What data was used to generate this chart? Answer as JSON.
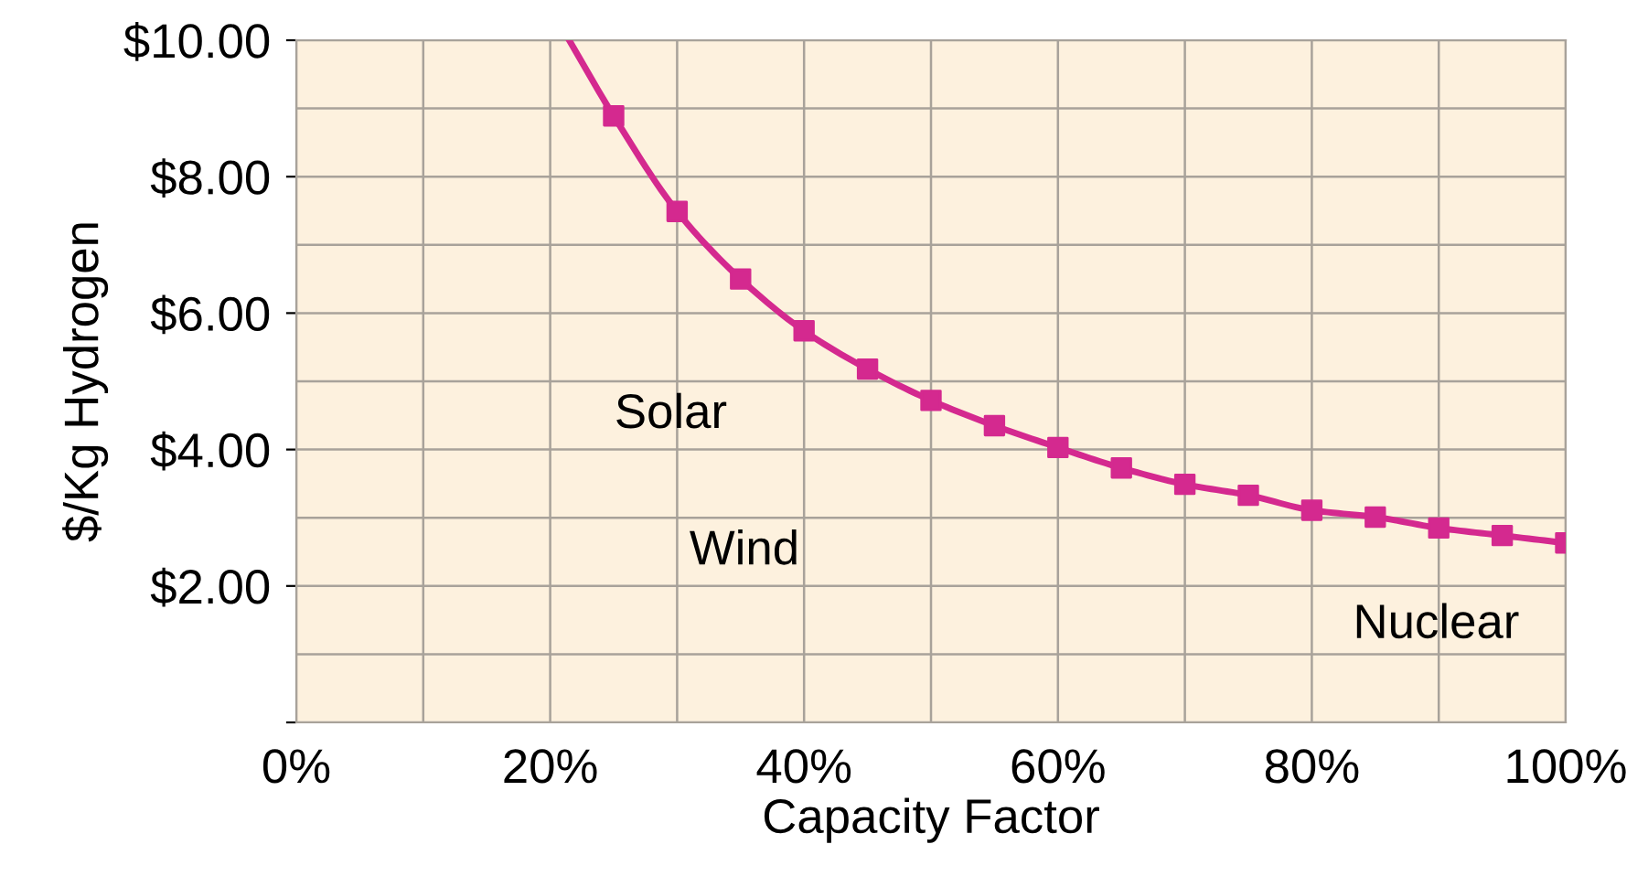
{
  "chart_data": {
    "type": "line",
    "xlabel": "Capacity Factor",
    "ylabel": "$/Kg Hydrogen",
    "xlim": [
      0,
      100
    ],
    "xticks": [
      {
        "value": 0,
        "label": "0%"
      },
      {
        "value": 20,
        "label": "20%"
      },
      {
        "value": 40,
        "label": "40%"
      },
      {
        "value": 60,
        "label": "60%"
      },
      {
        "value": 80,
        "label": "80%"
      },
      {
        "value": 100,
        "label": "100%"
      }
    ],
    "ylim": [
      0,
      10
    ],
    "yticks": [
      {
        "value": 0,
        "label": null
      },
      {
        "value": 2,
        "label": "$2.00"
      },
      {
        "value": 4,
        "label": "$4.00"
      },
      {
        "value": 6,
        "label": "$6.00"
      },
      {
        "value": 8,
        "label": "$8.00"
      },
      {
        "value": 10,
        "label": "$10.00"
      }
    ],
    "grid": true,
    "legend": false,
    "series": [
      {
        "marker": "none",
        "color": "#d4298f",
        "x": [
          21.5,
          25,
          30,
          35,
          40,
          45,
          50,
          55,
          60,
          65,
          70,
          75,
          80,
          85,
          90,
          95,
          100
        ],
        "values": [
          10,
          8.89,
          7.49,
          6.5,
          5.74,
          5.18,
          4.72,
          4.35,
          4.03,
          3.73,
          3.49,
          3.33,
          3.11,
          3.01,
          2.85,
          2.74,
          2.63
        ]
      },
      {
        "type": "scatter",
        "marker": "square",
        "color": "#d4298f",
        "x": [
          25,
          30,
          35,
          40,
          45,
          50,
          55,
          60,
          65,
          70,
          75,
          80,
          85,
          90,
          95,
          100
        ],
        "values": [
          8.89,
          7.49,
          6.5,
          5.74,
          5.18,
          4.72,
          4.35,
          4.03,
          3.73,
          3.49,
          3.33,
          3.11,
          3.01,
          2.85,
          2.74,
          2.63
        ]
      }
    ],
    "annotations": [
      "Solar",
      "Wind",
      "Nuclear"
    ]
  }
}
